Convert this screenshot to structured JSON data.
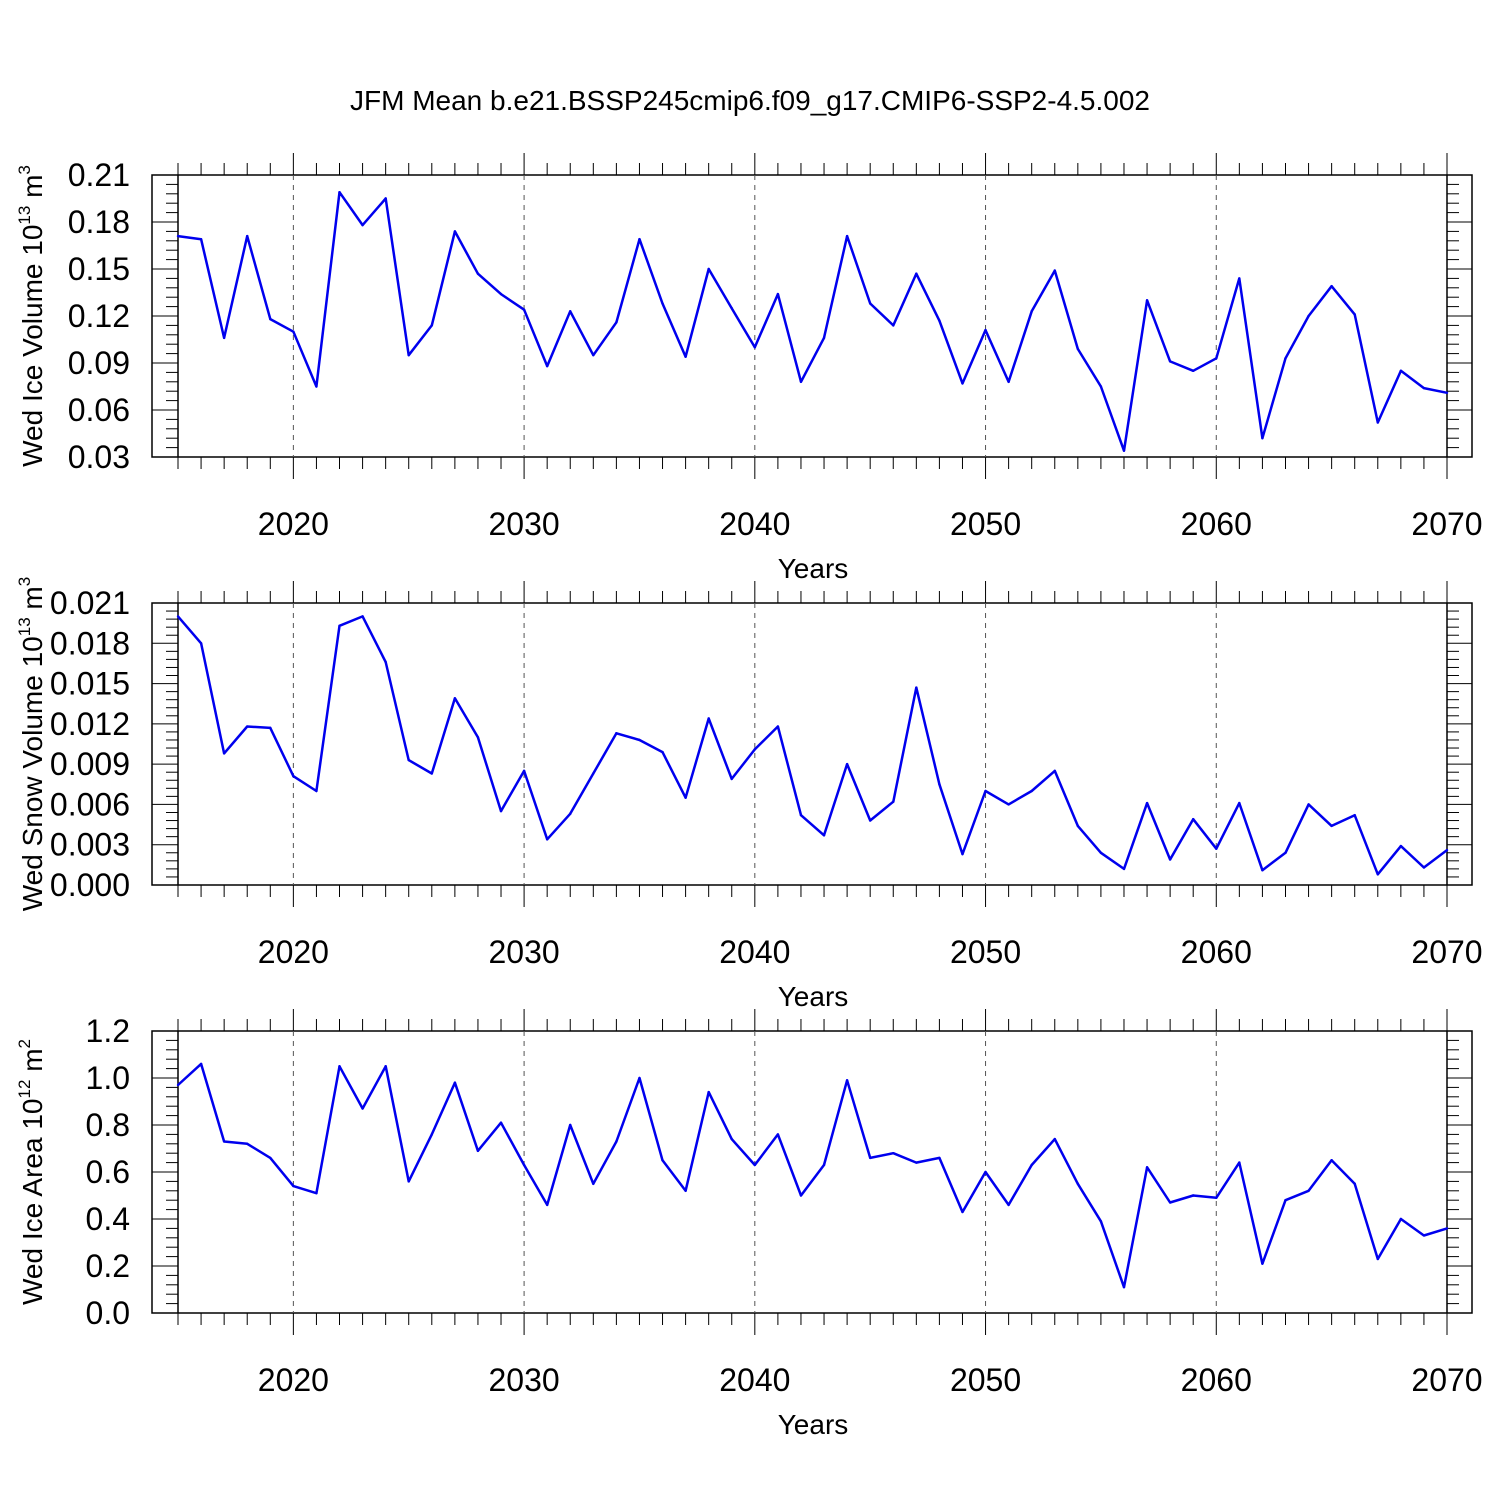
{
  "title": "JFM Mean b.e21.BSSP245cmip6.f09_g17.CMIP6-SSP2-4.5.002",
  "colors": {
    "line": "#0000ee",
    "axis": "#000000",
    "grid": "#555555"
  },
  "chart_data": [
    {
      "type": "line",
      "xlabel": "Years",
      "ylabel": {
        "text": "Wed Ice Volume 10",
        "exp": "13",
        "unit": " m",
        "unit_exp": "3"
      },
      "xlim": [
        2015,
        2070
      ],
      "ylim": [
        0.03,
        0.21
      ],
      "xticks": [
        "2020",
        "2030",
        "2040",
        "2050",
        "2060",
        "2070"
      ],
      "yticks": [
        "0.03",
        "0.06",
        "0.09",
        "0.12",
        "0.15",
        "0.18",
        "0.21"
      ],
      "x": [
        2015,
        2016,
        2017,
        2018,
        2019,
        2020,
        2021,
        2022,
        2023,
        2024,
        2025,
        2026,
        2027,
        2028,
        2029,
        2030,
        2031,
        2032,
        2033,
        2034,
        2035,
        2036,
        2037,
        2038,
        2039,
        2040,
        2041,
        2042,
        2043,
        2044,
        2045,
        2046,
        2047,
        2048,
        2049,
        2050,
        2051,
        2052,
        2053,
        2054,
        2055,
        2056,
        2057,
        2058,
        2059,
        2060,
        2061,
        2062,
        2063,
        2064,
        2065,
        2066,
        2067,
        2068,
        2069,
        2070
      ],
      "values": [
        0.171,
        0.169,
        0.106,
        0.171,
        0.118,
        0.11,
        0.075,
        0.199,
        0.178,
        0.195,
        0.095,
        0.114,
        0.174,
        0.147,
        0.134,
        0.124,
        0.088,
        0.123,
        0.095,
        0.116,
        0.169,
        0.128,
        0.094,
        0.15,
        0.125,
        0.1,
        0.134,
        0.078,
        0.106,
        0.171,
        0.128,
        0.114,
        0.147,
        0.117,
        0.077,
        0.111,
        0.078,
        0.123,
        0.149,
        0.099,
        0.075,
        0.034,
        0.13,
        0.091,
        0.085,
        0.093,
        0.144,
        0.042,
        0.093,
        0.12,
        0.139,
        0.121,
        0.052,
        0.085,
        0.074,
        0.071
      ]
    },
    {
      "type": "line",
      "xlabel": "Years",
      "ylabel": {
        "text": "Wed Snow Volume 10",
        "exp": "13",
        "unit": " m",
        "unit_exp": "3"
      },
      "xlim": [
        2015,
        2070
      ],
      "ylim": [
        0.0,
        0.021
      ],
      "xticks": [
        "2020",
        "2030",
        "2040",
        "2050",
        "2060",
        "2070"
      ],
      "yticks": [
        "0.000",
        "0.003",
        "0.006",
        "0.009",
        "0.012",
        "0.015",
        "0.018",
        "0.021"
      ],
      "x": [
        2015,
        2016,
        2017,
        2018,
        2019,
        2020,
        2021,
        2022,
        2023,
        2024,
        2025,
        2026,
        2027,
        2028,
        2029,
        2030,
        2031,
        2032,
        2033,
        2034,
        2035,
        2036,
        2037,
        2038,
        2039,
        2040,
        2041,
        2042,
        2043,
        2044,
        2045,
        2046,
        2047,
        2048,
        2049,
        2050,
        2051,
        2052,
        2053,
        2054,
        2055,
        2056,
        2057,
        2058,
        2059,
        2060,
        2061,
        2062,
        2063,
        2064,
        2065,
        2066,
        2067,
        2068,
        2069,
        2070
      ],
      "values": [
        0.02,
        0.018,
        0.0098,
        0.0118,
        0.0117,
        0.0081,
        0.007,
        0.0193,
        0.02,
        0.0166,
        0.0093,
        0.0083,
        0.0139,
        0.011,
        0.0055,
        0.0085,
        0.0034,
        0.0053,
        0.0083,
        0.0113,
        0.0108,
        0.0099,
        0.0065,
        0.0124,
        0.0079,
        0.0101,
        0.0118,
        0.0052,
        0.0037,
        0.009,
        0.0048,
        0.0062,
        0.0147,
        0.0075,
        0.0023,
        0.007,
        0.006,
        0.007,
        0.0085,
        0.0044,
        0.0024,
        0.0012,
        0.0061,
        0.0019,
        0.0049,
        0.0027,
        0.0061,
        0.0011,
        0.0024,
        0.006,
        0.0044,
        0.0052,
        0.0008,
        0.0029,
        0.0013,
        0.0026
      ]
    },
    {
      "type": "line",
      "xlabel": "Years",
      "ylabel": {
        "text": "Wed Ice Area 10",
        "exp": "12",
        "unit": " m",
        "unit_exp": "2"
      },
      "xlim": [
        2015,
        2070
      ],
      "ylim": [
        0.0,
        1.2
      ],
      "xticks": [
        "2020",
        "2030",
        "2040",
        "2050",
        "2060",
        "2070"
      ],
      "yticks": [
        "0.0",
        "0.2",
        "0.4",
        "0.6",
        "0.8",
        "1.0",
        "1.2"
      ],
      "x": [
        2015,
        2016,
        2017,
        2018,
        2019,
        2020,
        2021,
        2022,
        2023,
        2024,
        2025,
        2026,
        2027,
        2028,
        2029,
        2030,
        2031,
        2032,
        2033,
        2034,
        2035,
        2036,
        2037,
        2038,
        2039,
        2040,
        2041,
        2042,
        2043,
        2044,
        2045,
        2046,
        2047,
        2048,
        2049,
        2050,
        2051,
        2052,
        2053,
        2054,
        2055,
        2056,
        2057,
        2058,
        2059,
        2060,
        2061,
        2062,
        2063,
        2064,
        2065,
        2066,
        2067,
        2068,
        2069,
        2070
      ],
      "values": [
        0.97,
        1.06,
        0.73,
        0.72,
        0.66,
        0.54,
        0.51,
        1.05,
        0.87,
        1.05,
        0.56,
        0.76,
        0.98,
        0.69,
        0.81,
        0.63,
        0.46,
        0.8,
        0.55,
        0.73,
        1.0,
        0.65,
        0.52,
        0.94,
        0.74,
        0.63,
        0.76,
        0.5,
        0.63,
        0.99,
        0.66,
        0.68,
        0.64,
        0.66,
        0.43,
        0.6,
        0.46,
        0.63,
        0.74,
        0.55,
        0.39,
        0.11,
        0.62,
        0.47,
        0.5,
        0.49,
        0.64,
        0.21,
        0.48,
        0.52,
        0.65,
        0.55,
        0.23,
        0.4,
        0.33,
        0.36
      ]
    }
  ]
}
